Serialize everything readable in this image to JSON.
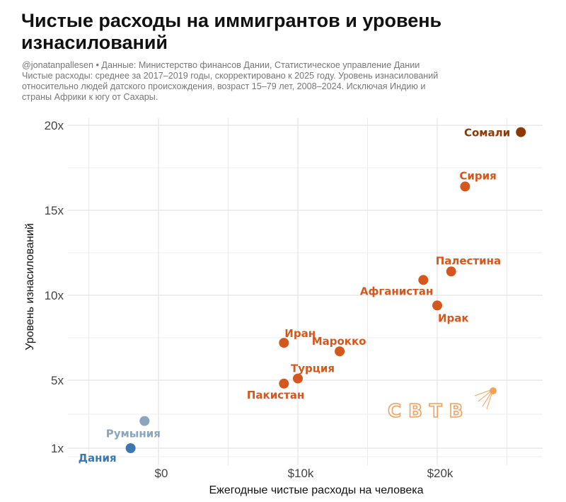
{
  "header": {
    "title_line1": "Чистые расходы на иммигрантов и уровень",
    "title_line2": "изнасилований",
    "subtitle_lines": [
      "@jonatanpallesen • Данные: Министерство финансов Дании, Статистическое управление Дании",
      "Чистые расходы: среднее за 2017–2019 годы, скорректировано к 2025 году. Уровень изнасилований",
      "относительно людей датского происхождения, возраст 15–79 лет, 2008–2024. Исключая Индию и",
      "страны Африки к югу от Сахары."
    ]
  },
  "watermark": {
    "text": "СВТВ",
    "icon": "satellite-icon",
    "color": "#f2a15c"
  },
  "colors": {
    "orange": "#d4581e",
    "dark_brown": "#8b3a06",
    "blue": "#3b78b2",
    "light_blue": "#8aa5bd",
    "grid": "#ebebeb"
  },
  "chart_data": {
    "type": "scatter",
    "title": "Чистые расходы на иммигрантов и уровень изнасилований",
    "xlabel": "Ежегодные чистые расходы на человека",
    "ylabel": "Уровень изнасилований",
    "xlim": [
      -6.5,
      27.5
    ],
    "ylim": [
      0.4,
      20.4
    ],
    "x_unit": "thousand USD",
    "x_ticks": [
      {
        "value": 0,
        "label": "$0"
      },
      {
        "value": 10,
        "label": "$10k"
      },
      {
        "value": 20,
        "label": "$20k"
      }
    ],
    "x_minor": [
      -5,
      5,
      15,
      25
    ],
    "y_ticks": [
      {
        "value": 1,
        "label": "1x"
      },
      {
        "value": 5,
        "label": "5x"
      },
      {
        "value": 10,
        "label": "10x"
      },
      {
        "value": 15,
        "label": "15x"
      },
      {
        "value": 20,
        "label": "20x"
      }
    ],
    "y_minor": [
      3,
      7.5,
      12.5,
      17.5
    ],
    "grid": true,
    "legend": "none",
    "points": [
      {
        "name": "Сомали",
        "x": 26.0,
        "y": 19.6,
        "color": "dark_brown",
        "label_pos": "left"
      },
      {
        "name": "Сирия",
        "x": 22.0,
        "y": 16.4,
        "color": "orange",
        "label_pos": "above-right"
      },
      {
        "name": "Палестина",
        "x": 21.0,
        "y": 11.4,
        "color": "orange",
        "label_pos": "above-right"
      },
      {
        "name": "Афганистан",
        "x": 19.0,
        "y": 10.9,
        "color": "orange",
        "label_pos": "below-left"
      },
      {
        "name": "Ирак",
        "x": 20.0,
        "y": 9.4,
        "color": "orange",
        "label_pos": "below-right"
      },
      {
        "name": "Марокко",
        "x": 13.0,
        "y": 6.7,
        "color": "orange",
        "label_pos": "above"
      },
      {
        "name": "Иран",
        "x": 9.0,
        "y": 7.2,
        "color": "orange",
        "label_pos": "above-right"
      },
      {
        "name": "Турция",
        "x": 10.0,
        "y": 5.1,
        "color": "orange",
        "label_pos": "above"
      },
      {
        "name": "Пакистан",
        "x": 9.0,
        "y": 4.8,
        "color": "orange",
        "label_pos": "below-left"
      },
      {
        "name": "Румыния",
        "x": -1.0,
        "y": 2.6,
        "color": "light_blue",
        "label_pos": "below"
      },
      {
        "name": "Дания",
        "x": -2.0,
        "y": 1.0,
        "color": "blue",
        "label_pos": "below-left"
      }
    ]
  }
}
